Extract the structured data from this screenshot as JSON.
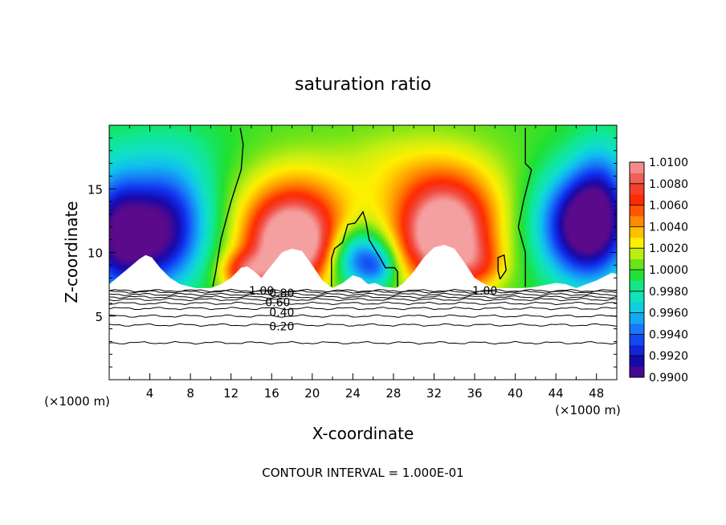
{
  "chart_data": {
    "type": "heatmap",
    "title": "saturation ratio",
    "xlabel": "X-coordinate",
    "ylabel": "Z-coordinate",
    "x_unit_left": "(×1000 m)",
    "x_unit_right": "(×1000 m)",
    "xlim": [
      0,
      50
    ],
    "ylim": [
      0,
      20
    ],
    "x_ticks": [
      4,
      8,
      12,
      16,
      20,
      24,
      28,
      32,
      36,
      40,
      44,
      48
    ],
    "x_tick_labels": [
      "4",
      "8",
      "12",
      "16",
      "20",
      "24",
      "28",
      "32",
      "36",
      "40",
      "44",
      "48"
    ],
    "y_ticks": [
      5,
      10,
      15
    ],
    "y_tick_labels": [
      "5",
      "10",
      "15"
    ],
    "colorbar": {
      "min": 0.99,
      "max": 1.01,
      "labels": [
        "1.0100",
        "1.0080",
        "1.0060",
        "1.0040",
        "1.0020",
        "1.0000",
        "0.9980",
        "0.9960",
        "0.9940",
        "0.9920",
        "0.9900"
      ],
      "stops": [
        {
          "v": 0.99,
          "c": "#5a0a8a"
        },
        {
          "v": 0.9915,
          "c": "#1808a8"
        },
        {
          "v": 0.993,
          "c": "#1030f0"
        },
        {
          "v": 0.9945,
          "c": "#1878f8"
        },
        {
          "v": 0.996,
          "c": "#10c0f0"
        },
        {
          "v": 0.9972,
          "c": "#10e0c8"
        },
        {
          "v": 0.9984,
          "c": "#10e890"
        },
        {
          "v": 0.9996,
          "c": "#20e030"
        },
        {
          "v": 1.0006,
          "c": "#70e418"
        },
        {
          "v": 1.0016,
          "c": "#c8ee10"
        },
        {
          "v": 1.0026,
          "c": "#fff000"
        },
        {
          "v": 1.0038,
          "c": "#ffb000"
        },
        {
          "v": 1.005,
          "c": "#ff7000"
        },
        {
          "v": 1.0064,
          "c": "#ff2800"
        },
        {
          "v": 1.008,
          "c": "#f04a40"
        },
        {
          "v": 1.01,
          "c": "#f5a0a0"
        }
      ]
    },
    "contour_labels": [
      {
        "text": "1.00",
        "x": 15.0,
        "y": 7.0
      },
      {
        "text": "0.80",
        "x": 17.0,
        "y": 6.8
      },
      {
        "text": "0.60",
        "x": 16.6,
        "y": 6.1
      },
      {
        "text": "0.40",
        "x": 17.0,
        "y": 5.3
      },
      {
        "text": "0.20",
        "x": 17.0,
        "y": 4.2
      },
      {
        "text": "1.00",
        "x": 37.0,
        "y": 7.0
      }
    ],
    "ground_contours_y": [
      7.0,
      6.9,
      6.7,
      6.5,
      6.3,
      6.0,
      5.6,
      5.0,
      4.3,
      2.9
    ],
    "mountain_profile": [
      [
        0,
        7.5
      ],
      [
        1.5,
        8.5
      ],
      [
        3.0,
        9.5
      ],
      [
        3.6,
        9.8
      ],
      [
        4.2,
        9.6
      ],
      [
        5.0,
        8.8
      ],
      [
        6.0,
        8.0
      ],
      [
        7.0,
        7.5
      ],
      [
        8.5,
        7.2
      ],
      [
        10.0,
        7.2
      ],
      [
        11.0,
        7.5
      ],
      [
        12.0,
        8.0
      ],
      [
        13.0,
        8.8
      ],
      [
        13.6,
        8.9
      ],
      [
        14.3,
        8.5
      ],
      [
        15.0,
        8.0
      ],
      [
        16.0,
        9.0
      ],
      [
        17.0,
        10.0
      ],
      [
        18.0,
        10.3
      ],
      [
        19.0,
        10.1
      ],
      [
        20.0,
        9.0
      ],
      [
        21.0,
        7.8
      ],
      [
        22.0,
        7.2
      ],
      [
        23.0,
        7.6
      ],
      [
        24.0,
        8.2
      ],
      [
        24.8,
        8.0
      ],
      [
        25.5,
        7.5
      ],
      [
        26.2,
        7.6
      ],
      [
        27.0,
        7.3
      ],
      [
        28.3,
        7.2
      ],
      [
        29.0,
        7.6
      ],
      [
        30.0,
        8.5
      ],
      [
        31.0,
        9.6
      ],
      [
        32.0,
        10.4
      ],
      [
        33.0,
        10.6
      ],
      [
        34.0,
        10.3
      ],
      [
        35.0,
        9.2
      ],
      [
        36.0,
        8.0
      ],
      [
        37.0,
        7.5
      ],
      [
        38.0,
        7.2
      ],
      [
        41.0,
        7.2
      ],
      [
        42.0,
        7.3
      ],
      [
        44.0,
        7.6
      ],
      [
        45.0,
        7.5
      ],
      [
        46.0,
        7.2
      ],
      [
        48.0,
        7.8
      ],
      [
        49.5,
        8.4
      ],
      [
        50,
        8.3
      ]
    ],
    "blobs": [
      {
        "x": 4.5,
        "y": 11.0,
        "rx": 4.5,
        "ry": 4.0,
        "v": -0.0085
      },
      {
        "x": 0.5,
        "y": 11.5,
        "rx": 3.0,
        "ry": 5.0,
        "v": -0.0065
      },
      {
        "x": 6.0,
        "y": 14.5,
        "rx": 4.5,
        "ry": 4.0,
        "v": -0.0035
      },
      {
        "x": 47.0,
        "y": 11.5,
        "rx": 4.0,
        "ry": 4.0,
        "v": -0.008
      },
      {
        "x": 48.5,
        "y": 14.5,
        "rx": 3.0,
        "ry": 4.5,
        "v": -0.005
      },
      {
        "x": 45.0,
        "y": 13.0,
        "rx": 4.0,
        "ry": 4.0,
        "v": -0.003
      },
      {
        "x": 24.5,
        "y": 9.6,
        "rx": 3.0,
        "ry": 2.3,
        "v": -0.0068
      },
      {
        "x": 26.5,
        "y": 8.8,
        "rx": 1.8,
        "ry": 1.5,
        "v": -0.003
      },
      {
        "x": 18.0,
        "y": 10.5,
        "rx": 4.0,
        "ry": 3.2,
        "v": 0.009
      },
      {
        "x": 18.0,
        "y": 11.5,
        "rx": 5.5,
        "ry": 4.5,
        "v": 0.0045
      },
      {
        "x": 13.5,
        "y": 8.5,
        "rx": 2.5,
        "ry": 1.5,
        "v": 0.006
      },
      {
        "x": 19.0,
        "y": 14.0,
        "rx": 6.0,
        "ry": 4.0,
        "v": 0.0018
      },
      {
        "x": 33.0,
        "y": 11.0,
        "rx": 4.0,
        "ry": 3.5,
        "v": 0.009
      },
      {
        "x": 33.0,
        "y": 12.5,
        "rx": 5.5,
        "ry": 4.5,
        "v": 0.0045
      },
      {
        "x": 33.0,
        "y": 15.0,
        "rx": 6.5,
        "ry": 4.0,
        "v": 0.0018
      },
      {
        "x": 36.5,
        "y": 9.0,
        "rx": 2.5,
        "ry": 1.8,
        "v": 0.003
      },
      {
        "x": 27.0,
        "y": 17.0,
        "rx": 5.0,
        "ry": 3.0,
        "v": 0.001
      },
      {
        "x": 5.0,
        "y": 18.5,
        "rx": 8.0,
        "ry": 2.5,
        "v": -0.0008
      }
    ],
    "contour_lines": [
      [
        [
          12.9,
          19.8
        ],
        [
          13.2,
          18.5
        ],
        [
          13.0,
          16.5
        ],
        [
          12.0,
          14.0
        ],
        [
          11.0,
          11.0
        ],
        [
          10.5,
          8.5
        ],
        [
          10.2,
          7.3
        ]
      ],
      [
        [
          21.9,
          7.3
        ],
        [
          21.9,
          9.5
        ],
        [
          22.2,
          10.3
        ],
        [
          23.0,
          10.8
        ],
        [
          23.5,
          12.2
        ],
        [
          24.2,
          12.3
        ],
        [
          24.4,
          12.5
        ],
        [
          25.0,
          13.2
        ],
        [
          25.3,
          12.4
        ],
        [
          25.6,
          11.0
        ],
        [
          26.2,
          10.2
        ],
        [
          26.8,
          9.4
        ],
        [
          27.2,
          8.8
        ],
        [
          28.1,
          8.8
        ],
        [
          28.4,
          8.5
        ],
        [
          28.4,
          7.3
        ]
      ],
      [
        [
          41.0,
          19.8
        ],
        [
          41.0,
          17.0
        ],
        [
          41.6,
          16.5
        ],
        [
          40.8,
          14.0
        ],
        [
          40.3,
          12.0
        ],
        [
          41.0,
          10.0
        ],
        [
          41.0,
          7.3
        ]
      ],
      [
        [
          38.5,
          7.9
        ],
        [
          39.1,
          8.6
        ],
        [
          38.9,
          9.8
        ],
        [
          38.3,
          9.6
        ],
        [
          38.3,
          8.6
        ],
        [
          38.5,
          7.9
        ]
      ]
    ],
    "contour_interval_text": "CONTOUR INTERVAL = 1.000E-01"
  }
}
